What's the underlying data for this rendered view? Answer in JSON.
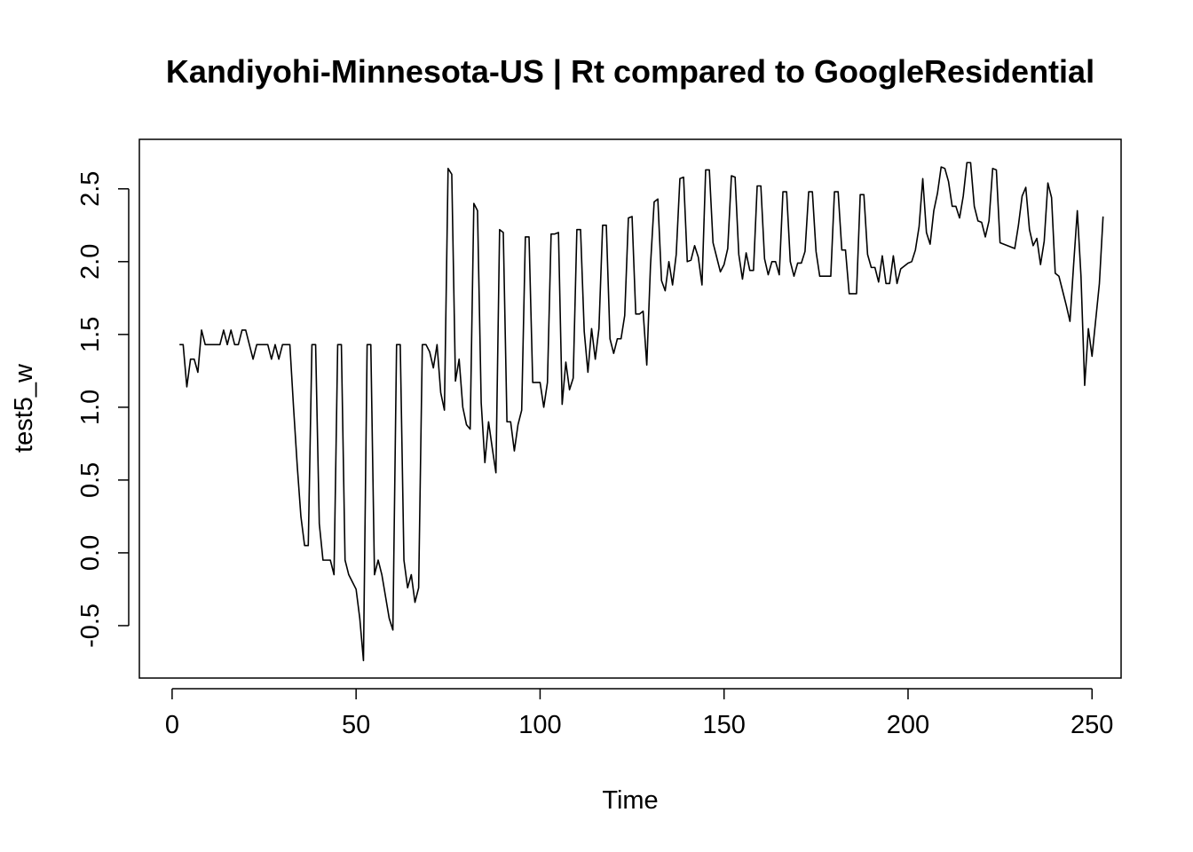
{
  "chart_data": {
    "type": "line",
    "title": "Kandiyohi-Minnesota-US | Rt compared to GoogleResidential",
    "xlabel": "Time",
    "ylabel": "test5_w",
    "xlim": [
      -8.9,
      257.9
    ],
    "ylim": [
      -0.86,
      2.84
    ],
    "x_ticks": [
      0,
      50,
      100,
      150,
      200,
      250
    ],
    "x_tick_labels": [
      "0",
      "50",
      "100",
      "150",
      "200",
      "250"
    ],
    "y_ticks": [
      -0.5,
      0.0,
      0.5,
      1.0,
      1.5,
      2.0,
      2.5
    ],
    "y_tick_labels": [
      "-0.5",
      "0.0",
      "0.5",
      "1.0",
      "1.5",
      "2.0",
      "2.5"
    ],
    "grid": false,
    "series": [
      {
        "x_start": 2,
        "x_step": 1,
        "values": [
          1.43,
          1.43,
          1.14,
          1.33,
          1.33,
          1.24,
          1.53,
          1.43,
          1.43,
          1.43,
          1.43,
          1.43,
          1.53,
          1.43,
          1.53,
          1.43,
          1.43,
          1.53,
          1.53,
          1.43,
          1.33,
          1.43,
          1.43,
          1.43,
          1.43,
          1.33,
          1.43,
          1.33,
          1.43,
          1.43,
          1.43,
          1.0,
          0.6,
          0.25,
          0.05,
          0.05,
          1.43,
          1.43,
          0.2,
          -0.05,
          -0.05,
          -0.05,
          -0.15,
          1.43,
          1.43,
          -0.05,
          -0.15,
          -0.2,
          -0.25,
          -0.45,
          -0.74,
          1.43,
          1.43,
          -0.15,
          -0.05,
          -0.15,
          -0.3,
          -0.45,
          -0.53,
          1.43,
          1.43,
          -0.05,
          -0.24,
          -0.15,
          -0.34,
          -0.24,
          1.43,
          1.43,
          1.38,
          1.27,
          1.43,
          1.1,
          0.98,
          2.64,
          2.6,
          1.18,
          1.33,
          1.0,
          0.88,
          0.85,
          2.4,
          2.35,
          1.03,
          0.62,
          0.9,
          0.72,
          0.55,
          2.22,
          2.2,
          0.9,
          0.9,
          0.7,
          0.88,
          0.98,
          2.17,
          2.17,
          1.17,
          1.17,
          1.17,
          1.0,
          1.17,
          2.19,
          2.19,
          2.2,
          1.02,
          1.31,
          1.12,
          1.2,
          2.22,
          2.22,
          1.52,
          1.24,
          1.54,
          1.33,
          1.54,
          2.25,
          2.25,
          1.47,
          1.37,
          1.47,
          1.47,
          1.63,
          2.3,
          2.31,
          1.64,
          1.64,
          1.66,
          1.29,
          1.97,
          2.41,
          2.43,
          1.87,
          1.8,
          2.0,
          1.84,
          2.05,
          2.57,
          2.58,
          2.0,
          2.01,
          2.11,
          2.03,
          1.84,
          2.63,
          2.63,
          2.13,
          2.03,
          1.93,
          1.98,
          2.09,
          2.59,
          2.58,
          2.05,
          1.88,
          2.06,
          1.94,
          1.94,
          2.52,
          2.52,
          2.02,
          1.91,
          2.0,
          2.0,
          1.91,
          2.48,
          2.48,
          2.0,
          1.9,
          1.99,
          1.99,
          2.07,
          2.48,
          2.48,
          2.07,
          1.9,
          1.9,
          1.9,
          1.9,
          2.48,
          2.48,
          2.08,
          2.08,
          1.78,
          1.78,
          1.78,
          2.46,
          2.46,
          2.05,
          1.96,
          1.96,
          1.86,
          2.04,
          1.85,
          1.85,
          2.04,
          1.85,
          1.95,
          1.97,
          1.99,
          2.0,
          2.08,
          2.24,
          2.57,
          2.2,
          2.12,
          2.35,
          2.47,
          2.65,
          2.64,
          2.55,
          2.38,
          2.38,
          2.3,
          2.45,
          2.68,
          2.68,
          2.38,
          2.28,
          2.27,
          2.17,
          2.28,
          2.64,
          2.63,
          2.13,
          2.12,
          2.11,
          2.1,
          2.09,
          2.25,
          2.45,
          2.51,
          2.22,
          2.11,
          2.16,
          1.98,
          2.14,
          2.54,
          2.44,
          1.92,
          1.9,
          1.8,
          1.7,
          1.59,
          1.98,
          2.35,
          1.9,
          1.15,
          1.54,
          1.35,
          1.6,
          1.85,
          2.31
        ]
      }
    ]
  }
}
